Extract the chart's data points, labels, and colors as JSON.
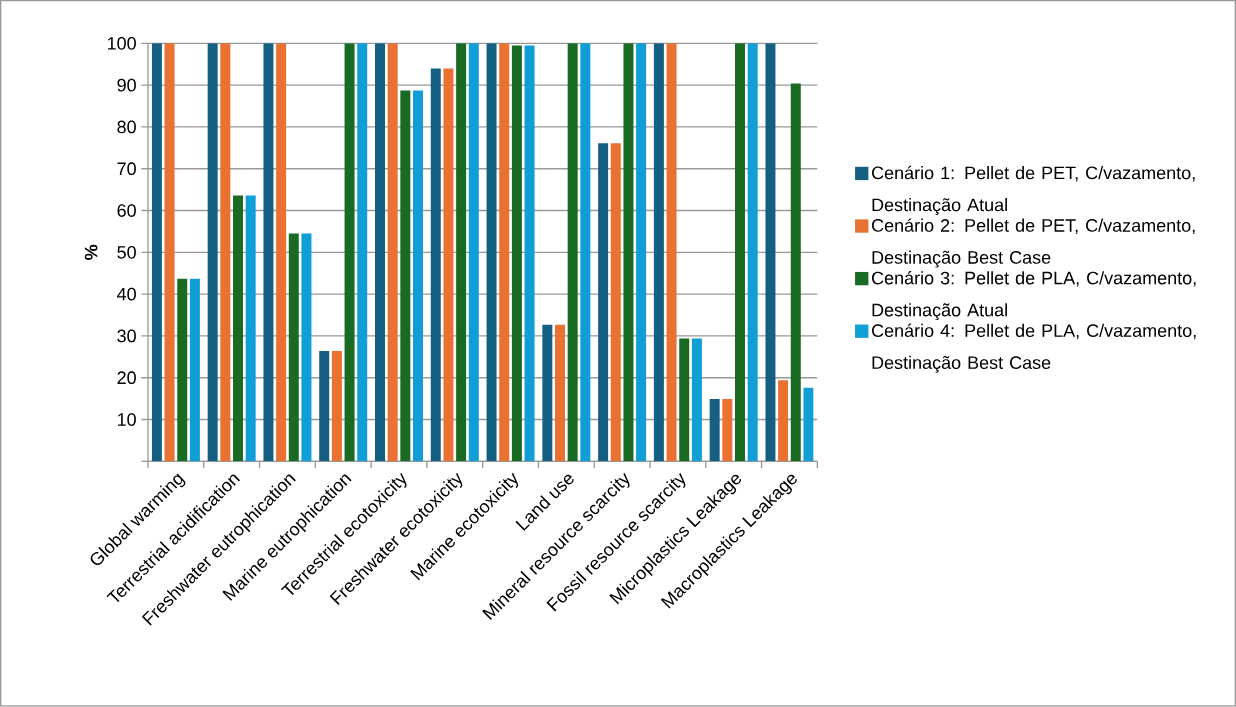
{
  "chart_data": {
    "type": "bar",
    "ylabel": "%",
    "categories": [
      "Global warming",
      "Terrestrial acidification",
      "Freshwater eutrophication",
      "Marine eutrophication",
      "Terrestrial ecotoxicity",
      "Freshwater ecotoxicity",
      "Marine ecotoxicity",
      "Land use",
      "Mineral resource scarcity",
      "Fossil resource scarcity",
      "Microplastics Leakage",
      "Macroplastics Leakage"
    ],
    "series": [
      {
        "name": "Cenário 1: Pellet de PET, C/vazamento,  Destinação Atual",
        "color": "#156082",
        "values": [
          100,
          100,
          100,
          26.4,
          100,
          94.0,
          100,
          32.7,
          76.1,
          100,
          14.9,
          100
        ]
      },
      {
        "name": "Cenário 2: Pellet de PET, C/vazamento,  Destinação Best Case",
        "color": "#e97132",
        "values": [
          100,
          100,
          100,
          26.4,
          100,
          94.0,
          100,
          32.7,
          76.1,
          100,
          14.9,
          19.4
        ]
      },
      {
        "name": "Cenário 3: Pellet de PLA, C/vazamento,  Destinação Atual",
        "color": "#196b24",
        "values": [
          43.7,
          63.6,
          54.5,
          100,
          88.7,
          100,
          99.5,
          100,
          100,
          29.4,
          100,
          90.4
        ]
      },
      {
        "name": "Cenário 4: Pellet de PLA, C/vazamento,  Destinação Best Case",
        "color": "#0f9ed5",
        "values": [
          43.7,
          63.6,
          54.5,
          100,
          88.7,
          100,
          99.5,
          100,
          100,
          29.4,
          100,
          17.6
        ]
      }
    ],
    "ylim": [
      0,
      100
    ],
    "yticks": [
      {
        "value": 0,
        "label": null
      },
      10,
      20,
      30,
      40,
      50,
      60,
      70,
      80,
      90,
      100
    ],
    "grid": "y",
    "legend": "right"
  }
}
